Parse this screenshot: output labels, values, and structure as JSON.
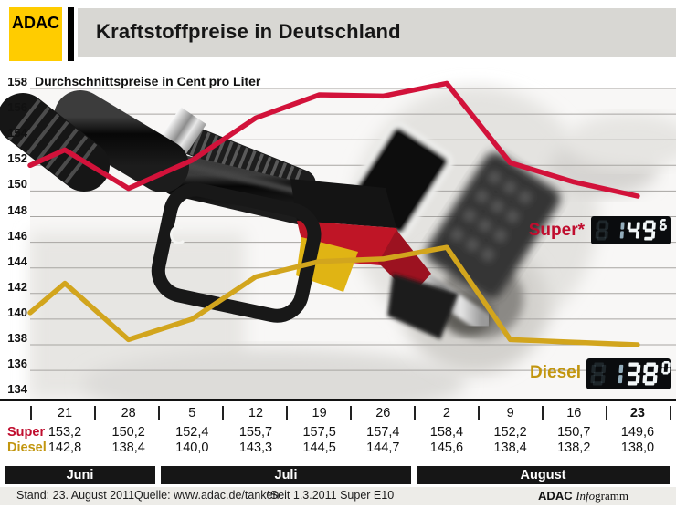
{
  "header": {
    "logo_text": "ADAC",
    "title": "Kraftstoffpreise in Deutschland"
  },
  "chart": {
    "subtitle": "Durchschnittspreise in Cent pro Liter",
    "super_label": "Super*",
    "diesel_label": "Diesel",
    "lcd_super": {
      "main": "149",
      "sup": "6"
    },
    "lcd_diesel": {
      "main": "138",
      "sup": "0"
    }
  },
  "chart_data": {
    "type": "line",
    "title": "Kraftstoffpreise in Deutschland",
    "ylabel": "Durchschnittspreise in Cent pro Liter",
    "x": [
      "21",
      "28",
      "5",
      "12",
      "19",
      "26",
      "2",
      "9",
      "16",
      "23"
    ],
    "months": [
      {
        "label": "Juni",
        "tick_span": [
          0,
          2
        ]
      },
      {
        "label": "Juli",
        "tick_span": [
          2,
          6
        ]
      },
      {
        "label": "August",
        "tick_span": [
          6,
          10
        ]
      }
    ],
    "ylim": [
      134,
      158
    ],
    "ytick_step": 2,
    "grid": true,
    "legend_position": "inline-right",
    "series": [
      {
        "name": "Super",
        "color": "#d2123a",
        "values": [
          153.2,
          150.2,
          152.4,
          155.7,
          157.5,
          157.4,
          158.4,
          152.2,
          150.7,
          149.6
        ],
        "edge_lead_value": 152.0
      },
      {
        "name": "Diesel",
        "color": "#d2a51d",
        "values": [
          142.8,
          138.4,
          140.0,
          143.3,
          144.5,
          144.7,
          145.6,
          138.4,
          138.2,
          138.0
        ],
        "edge_lead_value": 140.5
      }
    ]
  },
  "table": {
    "dates": [
      "21",
      "28",
      "5",
      "12",
      "19",
      "26",
      "2",
      "9",
      "16",
      "23"
    ],
    "bold_date": "23",
    "rows": [
      {
        "label": "Super",
        "color": "#c00d2e",
        "values": [
          "153,2",
          "150,2",
          "152,4",
          "155,7",
          "157,5",
          "157,4",
          "158,4",
          "152,2",
          "150,7",
          "149,6"
        ]
      },
      {
        "label": "Diesel",
        "color": "#c2960f",
        "values": [
          "142,8",
          "138,4",
          "140,0",
          "143,3",
          "144,5",
          "144,7",
          "145,6",
          "138,4",
          "138,2",
          "138,0"
        ]
      }
    ]
  },
  "months": [
    "Juni",
    "Juli",
    "August"
  ],
  "footer": {
    "stand": "Stand: 23. August 2011",
    "quelle": "Quelle: www.adac.de/tanken",
    "note": "*Seit 1.3.2011 Super E10",
    "credit_bold": "ADAC ",
    "credit_italic": "Info",
    "credit_rest": "gramm"
  },
  "colors": {
    "adac_yellow": "#ffcc00",
    "title_bar": "#d8d7d3",
    "super_line": "#d2123a",
    "diesel_line": "#d2a51d",
    "lcd_bg": "#0a0c0e",
    "lcd_digit": "#f2f7f8",
    "lcd_digit_dim": "#93adbb"
  }
}
